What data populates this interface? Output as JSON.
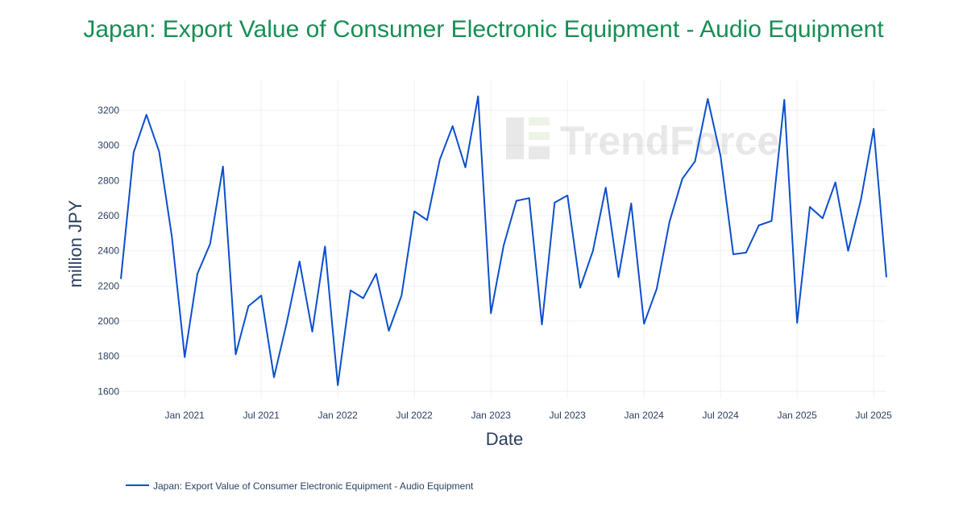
{
  "chart_data": {
    "type": "line",
    "title": "Japan: Export Value of Consumer Electronic Equipment - Audio Equipment",
    "xlabel": "Date",
    "ylabel": "million JPY",
    "ylim": [
      1560,
      3370
    ],
    "yticks": [
      1600,
      1800,
      2000,
      2200,
      2400,
      2600,
      2800,
      3000,
      3200
    ],
    "xlim": [
      "2020-08",
      "2025-08"
    ],
    "xticks": [
      {
        "date": "2021-01",
        "label": "Jan 2021"
      },
      {
        "date": "2021-07",
        "label": "Jul 2021"
      },
      {
        "date": "2022-01",
        "label": "Jan 2022"
      },
      {
        "date": "2022-07",
        "label": "Jul 2022"
      },
      {
        "date": "2023-01",
        "label": "Jan 2023"
      },
      {
        "date": "2023-07",
        "label": "Jul 2023"
      },
      {
        "date": "2024-01",
        "label": "Jan 2024"
      },
      {
        "date": "2024-07",
        "label": "Jul 2024"
      },
      {
        "date": "2025-01",
        "label": "Jan 2025"
      },
      {
        "date": "2025-07",
        "label": "Jul 2025"
      }
    ],
    "grid": true,
    "legend_position": "bottom-left",
    "series": [
      {
        "name": "Japan: Export Value of Consumer Electronic Equipment - Audio Equipment",
        "color": "#0b4fcc",
        "x": [
          "2020-08",
          "2020-09",
          "2020-10",
          "2020-11",
          "2020-12",
          "2021-01",
          "2021-02",
          "2021-03",
          "2021-04",
          "2021-05",
          "2021-06",
          "2021-07",
          "2021-08",
          "2021-09",
          "2021-10",
          "2021-11",
          "2021-12",
          "2022-01",
          "2022-02",
          "2022-03",
          "2022-04",
          "2022-05",
          "2022-06",
          "2022-07",
          "2022-08",
          "2022-09",
          "2022-10",
          "2022-11",
          "2022-12",
          "2023-01",
          "2023-02",
          "2023-03",
          "2023-04",
          "2023-05",
          "2023-06",
          "2023-07",
          "2023-08",
          "2023-09",
          "2023-10",
          "2023-11",
          "2023-12",
          "2024-01",
          "2024-02",
          "2024-03",
          "2024-04",
          "2024-05",
          "2024-06",
          "2024-07",
          "2024-08",
          "2024-09",
          "2024-10",
          "2024-11",
          "2024-12",
          "2025-01",
          "2025-02",
          "2025-03",
          "2025-04",
          "2025-05",
          "2025-06",
          "2025-07",
          "2025-08"
        ],
        "values": [
          2240,
          2960,
          3175,
          2965,
          2480,
          1795,
          2270,
          2440,
          2880,
          1810,
          2085,
          2145,
          1680,
          1990,
          2340,
          1940,
          2425,
          1635,
          2175,
          2130,
          2270,
          1945,
          2145,
          2625,
          2575,
          2920,
          3110,
          2875,
          3280,
          2045,
          2430,
          2685,
          2700,
          1980,
          2675,
          2715,
          2190,
          2400,
          2760,
          2250,
          2670,
          1985,
          2185,
          2565,
          2810,
          2910,
          3265,
          2940,
          2380,
          2390,
          2545,
          2570,
          3260,
          1990,
          2650,
          2585,
          2790,
          2400,
          2690,
          3095,
          2250
        ]
      }
    ]
  },
  "watermark": "TrendForce"
}
